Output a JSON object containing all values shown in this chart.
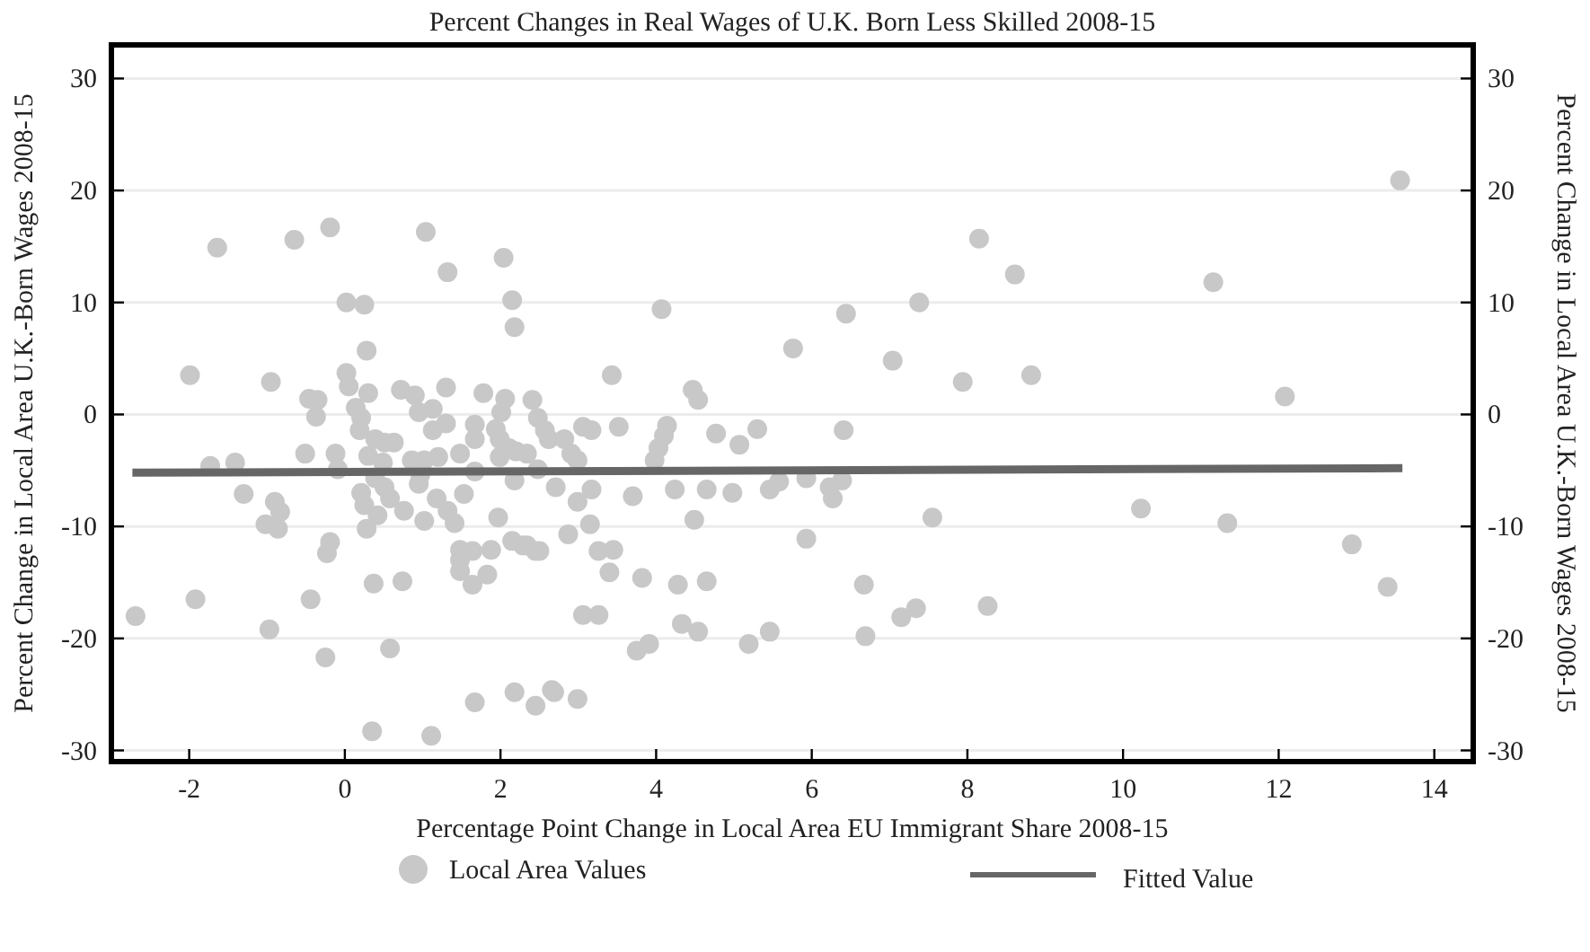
{
  "chart_data": {
    "type": "scatter",
    "title": "Percent Changes in Real Wages of U.K. Born Less Skilled 2008-15",
    "xlabel": "Percentage Point Change in Local Area EU Immigrant Share 2008-15",
    "ylabel": "Percent Change in Local Area U.K.-Born Wages 2008-15",
    "y2label": "Percent Change in Local Area U.K.-Born Wages 2008-15",
    "xlim": [
      -3,
      14.5
    ],
    "xticks": [
      -2,
      0,
      2,
      4,
      6,
      8,
      10,
      12,
      14
    ],
    "ylim": [
      -31,
      33
    ],
    "yticks": [
      -30,
      -20,
      -10,
      0,
      10,
      20,
      30
    ],
    "y2lim": [
      -31,
      33
    ],
    "y2ticks": [
      -30,
      -20,
      -10,
      0,
      10,
      20,
      30
    ],
    "grid": "y",
    "legend": "bottom",
    "series": [
      {
        "name": "Local Area Values",
        "color": "#c8c8c8",
        "marker": "circle",
        "x": [
          -2.69,
          -1.99,
          -1.92,
          -1.64,
          -1.73,
          -1.41,
          -1.3,
          -1.02,
          -0.9,
          -0.83,
          -0.86,
          -0.95,
          -0.97,
          -0.65,
          -0.46,
          -0.35,
          -0.37,
          -0.51,
          -0.44,
          -0.25,
          -0.19,
          -0.19,
          -0.23,
          -0.12,
          -0.09,
          0.02,
          0.25,
          0.02,
          0.05,
          0.28,
          0.14,
          0.3,
          0.21,
          0.19,
          0.3,
          0.39,
          0.51,
          0.63,
          0.49,
          0.21,
          0.25,
          0.39,
          0.51,
          0.58,
          0.28,
          0.42,
          0.37,
          0.58,
          0.72,
          0.9,
          0.95,
          1.13,
          1.13,
          1.3,
          1.3,
          0.86,
          1.02,
          1.2,
          0.95,
          0.97,
          1.18,
          1.02,
          0.76,
          1.32,
          1.41,
          1.53,
          1.48,
          0.74,
          1.04,
          1.32,
          1.67,
          1.67,
          1.67,
          1.78,
          1.48,
          1.64,
          1.48,
          1.48,
          1.64,
          1.83,
          1.88,
          1.97,
          2.04,
          2.15,
          2.18,
          2.06,
          2.01,
          1.94,
          1.99,
          1.99,
          2.11,
          2.2,
          2.18,
          2.15,
          2.29,
          2.34,
          2.41,
          2.48,
          2.45,
          1.67,
          2.18,
          2.45,
          2.34,
          2.5,
          2.57,
          2.62,
          2.48,
          2.71,
          2.82,
          2.91,
          2.99,
          3.06,
          3.17,
          2.99,
          3.17,
          3.15,
          2.87,
          3.26,
          3.45,
          3.4,
          3.43,
          3.52,
          3.7,
          3.82,
          4.07,
          3.98,
          4.03,
          4.1,
          4.14,
          4.24,
          4.28,
          4.49,
          4.65,
          4.65,
          4.47,
          4.54,
          4.77,
          4.98,
          5.07,
          5.3,
          5.46,
          5.58,
          5.76,
          5.93,
          5.93,
          6.23,
          6.39,
          6.27,
          6.44,
          6.41,
          6.67,
          7.04,
          7.38,
          7.55,
          7.94,
          8.15,
          8.61,
          8.82,
          8.26,
          7.34,
          7.15,
          6.69,
          5.46,
          5.19,
          4.54,
          4.33,
          3.91,
          3.75,
          3.26,
          3.06,
          2.99,
          2.69,
          0.35,
          1.11,
          2.66,
          11.16,
          12.08,
          10.23,
          11.34,
          12.94,
          13.4,
          13.56
        ],
        "values": [
          -18,
          3.5,
          -16.5,
          14.9,
          -4.6,
          -4.3,
          -7.1,
          -9.8,
          -7.8,
          -8.7,
          -10.2,
          2.9,
          -19.2,
          15.6,
          1.4,
          1.3,
          -0.2,
          -3.5,
          -16.5,
          -21.7,
          16.7,
          -11.4,
          -12.4,
          -3.5,
          -4.9,
          10,
          9.8,
          3.7,
          2.5,
          5.7,
          0.6,
          1.9,
          -0.3,
          -1.4,
          -3.7,
          -2.2,
          -2.5,
          -2.5,
          -4.3,
          -7,
          -8.1,
          -5.7,
          -6.5,
          -7.5,
          -10.2,
          -9,
          -15.1,
          -20.9,
          2.2,
          1.7,
          0.2,
          0.5,
          -1.4,
          -0.8,
          2.4,
          -4.1,
          -4.1,
          -3.8,
          -6.2,
          -5.4,
          -7.5,
          -9.5,
          -8.6,
          -8.6,
          -9.7,
          -7.1,
          -3.5,
          -14.9,
          16.3,
          12.7,
          -0.9,
          -2.2,
          -5.1,
          1.9,
          -12.1,
          -12.2,
          -13,
          -14,
          -15.2,
          -14.3,
          -12.1,
          -9.2,
          14,
          10.2,
          7.8,
          1.4,
          0.2,
          -1.3,
          -2.2,
          -3.8,
          -3,
          -3.3,
          -5.9,
          -11.3,
          -11.7,
          -3.5,
          1.3,
          -0.3,
          -12.2,
          -25.7,
          -24.8,
          -26,
          -11.7,
          -12.2,
          -1.4,
          -2.2,
          -4.9,
          -6.5,
          -2.2,
          -3.5,
          -4.1,
          -1.1,
          -1.4,
          -7.8,
          -6.7,
          -9.8,
          -10.7,
          -12.2,
          -12.1,
          -14.1,
          3.5,
          -1.1,
          -7.3,
          -14.6,
          9.4,
          -4.1,
          -3,
          -1.9,
          -1,
          -6.7,
          -15.2,
          -9.4,
          -6.7,
          -14.9,
          2.2,
          1.3,
          -1.7,
          -7,
          -2.7,
          -1.3,
          -6.7,
          -6,
          5.9,
          -5.7,
          -11.1,
          -6.5,
          -5.9,
          -7.5,
          9,
          -1.4,
          -15.2,
          4.8,
          10,
          -9.2,
          2.9,
          15.7,
          12.5,
          3.5,
          -17.1,
          -17.3,
          -18.1,
          -19.8,
          -19.4,
          -20.5,
          -19.4,
          -18.7,
          -20.5,
          -21.1,
          -17.9,
          -17.9,
          -25.4,
          -24.8,
          -28.3,
          -28.7,
          -24.6,
          11.8,
          1.6,
          -8.4,
          -9.7,
          -11.6,
          -15.4,
          20.9
        ]
      },
      {
        "type": "line",
        "name": "Fitted Value",
        "color": "#666666",
        "marker": "none",
        "line_style": "solid",
        "x": [
          -2.73,
          13.59
        ],
        "values": [
          -5.2,
          -4.8
        ]
      }
    ]
  }
}
